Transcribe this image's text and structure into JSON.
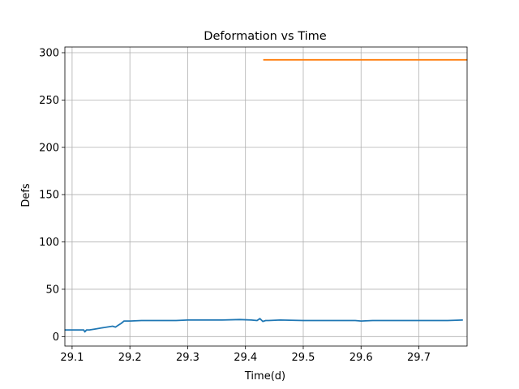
{
  "chart_data": {
    "type": "line",
    "title": "Deformation vs Time",
    "xlabel": "Time(d)",
    "ylabel": "Defs",
    "xlim": [
      29.0875,
      29.7835
    ],
    "ylim": [
      -10,
      306
    ],
    "xticks": [
      29.1,
      29.2,
      29.3,
      29.4,
      29.5,
      29.6,
      29.7
    ],
    "xtick_labels": [
      "29.1",
      "29.2",
      "29.3",
      "29.4",
      "29.5",
      "29.6",
      "29.7"
    ],
    "yticks": [
      0,
      50,
      100,
      150,
      200,
      250,
      300
    ],
    "ytick_labels": [
      "0",
      "50",
      "100",
      "150",
      "200",
      "250",
      "300"
    ],
    "grid": true,
    "series": [
      {
        "color": "#1f77b4",
        "x": [
          29.088,
          29.1,
          29.11,
          29.12,
          29.122,
          29.125,
          29.13,
          29.14,
          29.15,
          29.16,
          29.17,
          29.175,
          29.18,
          29.185,
          29.19,
          29.2,
          29.22,
          29.25,
          29.28,
          29.3,
          29.33,
          29.36,
          29.39,
          29.41,
          29.42,
          29.425,
          29.43,
          29.435,
          29.44,
          29.46,
          29.5,
          29.53,
          29.56,
          29.59,
          29.6,
          29.62,
          29.65,
          29.68,
          29.7,
          29.72,
          29.75,
          29.775
        ],
        "y": [
          7,
          7,
          7,
          7,
          5,
          7,
          7,
          8,
          9,
          10,
          11,
          10,
          12,
          14,
          16.5,
          16.5,
          17,
          17,
          17,
          17.5,
          17.5,
          17.5,
          18,
          17.5,
          17,
          19,
          16,
          17,
          17,
          17.5,
          17,
          17,
          17,
          17,
          16.5,
          17,
          17,
          17,
          17,
          17,
          17,
          17.5
        ]
      },
      {
        "color": "#ff7f0e",
        "x": [
          29.432,
          29.783
        ],
        "y": [
          292.5,
          292.5
        ]
      }
    ]
  }
}
